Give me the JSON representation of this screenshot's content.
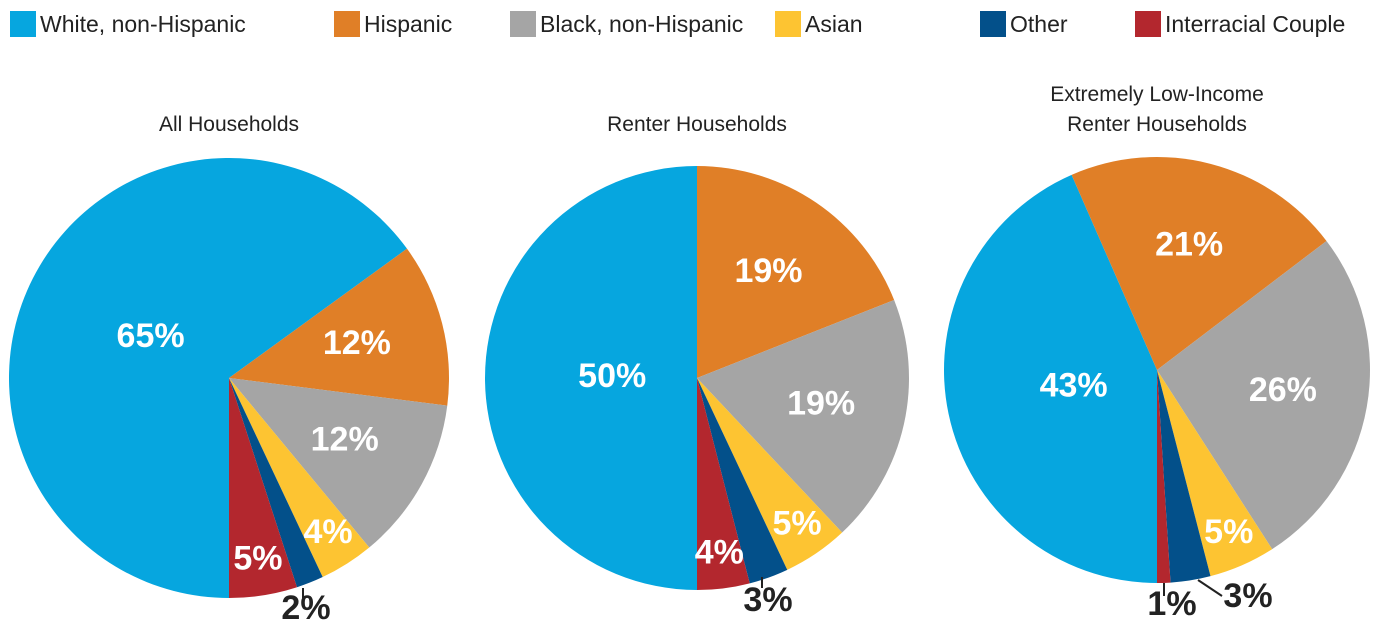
{
  "chart_data": [
    {
      "type": "pie",
      "title": "All Households",
      "categories": [
        "White, non-Hispanic",
        "Hispanic",
        "Black, non-Hispanic",
        "Asian",
        "Other",
        "Interracial Couple"
      ],
      "colors": [
        "#06a6df",
        "#e07f27",
        "#a5a5a5",
        "#fdc432",
        "#03508a",
        "#b3272e"
      ],
      "values": [
        65,
        12,
        12,
        4,
        2,
        5
      ],
      "value_labels": [
        "65%",
        "12%",
        "12%",
        "4%",
        "2%",
        "5%"
      ]
    },
    {
      "type": "pie",
      "title": "Renter Households",
      "categories": [
        "White, non-Hispanic",
        "Hispanic",
        "Black, non-Hispanic",
        "Asian",
        "Other",
        "Interracial Couple"
      ],
      "colors": [
        "#06a6df",
        "#e07f27",
        "#a5a5a5",
        "#fdc432",
        "#03508a",
        "#b3272e"
      ],
      "values": [
        50,
        19,
        19,
        5,
        3,
        4
      ],
      "value_labels": [
        "50%",
        "19%",
        "19%",
        "5%",
        "3%",
        "4%"
      ]
    },
    {
      "type": "pie",
      "title": "Extremely Low-Income Renter Households",
      "categories": [
        "White, non-Hispanic",
        "Hispanic",
        "Black, non-Hispanic",
        "Asian",
        "Other",
        "Interracial Couple"
      ],
      "colors": [
        "#06a6df",
        "#e07f27",
        "#a5a5a5",
        "#fdc432",
        "#03508a",
        "#b3272e"
      ],
      "values": [
        43,
        21,
        26,
        5,
        3,
        1
      ],
      "value_labels": [
        "43%",
        "21%",
        "26%",
        "5%",
        "3%",
        "1%"
      ]
    }
  ]
}
